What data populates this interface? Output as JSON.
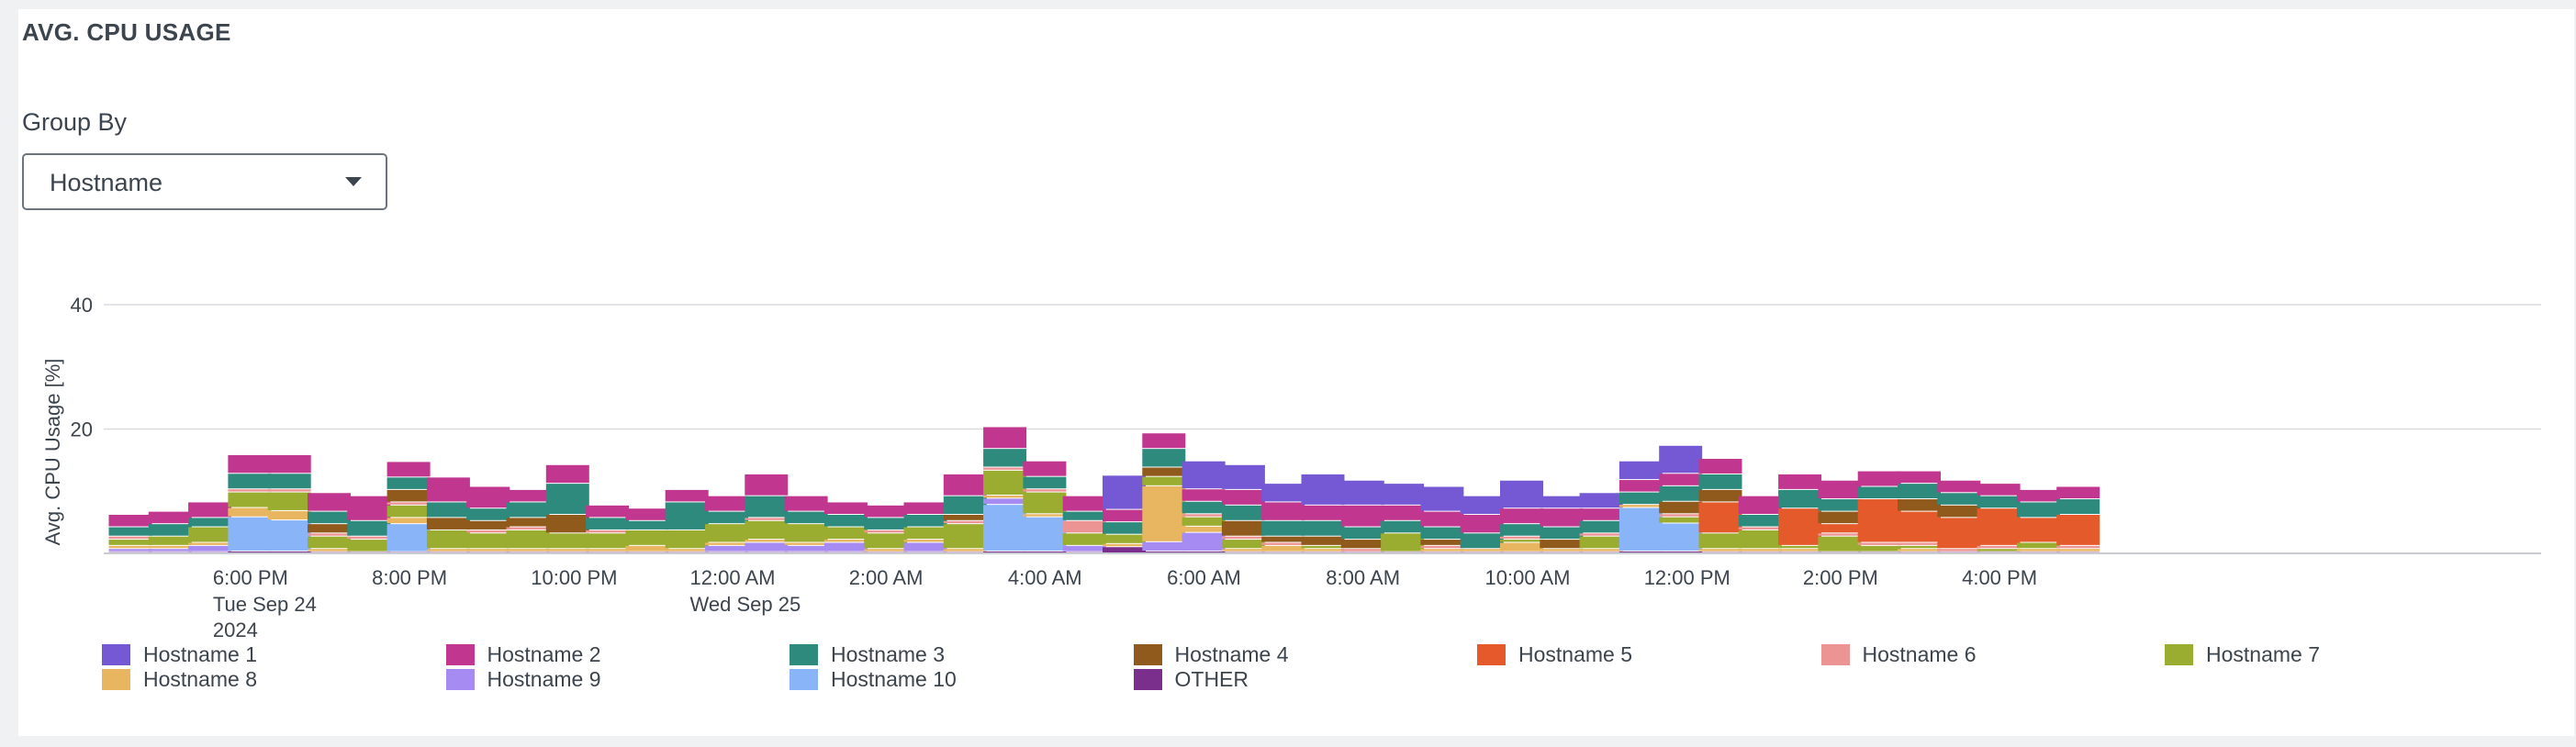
{
  "header": {
    "title": "AVG. CPU USAGE"
  },
  "controls": {
    "group_by_label": "Group By",
    "group_by_value": "Hostname"
  },
  "chart_data": {
    "type": "bar",
    "stacked": true,
    "title": "",
    "ylabel": "Avg. CPU Usage [%]",
    "xlabel": "",
    "ylim": [
      0,
      40
    ],
    "yticks": [
      20,
      40
    ],
    "grid": true,
    "legend_position": "bottom",
    "x_tick_labels": [
      {
        "label": "6:00 PM",
        "sub": [
          "Tue Sep 24",
          "2024"
        ],
        "index": 3
      },
      {
        "label": "8:00 PM",
        "sub": [],
        "index": 7
      },
      {
        "label": "10:00 PM",
        "sub": [],
        "index": 11
      },
      {
        "label": "12:00 AM",
        "sub": [
          "Wed Sep 25"
        ],
        "index": 15
      },
      {
        "label": "2:00 AM",
        "sub": [],
        "index": 19
      },
      {
        "label": "4:00 AM",
        "sub": [],
        "index": 23
      },
      {
        "label": "6:00 AM",
        "sub": [],
        "index": 27
      },
      {
        "label": "8:00 AM",
        "sub": [],
        "index": 31
      },
      {
        "label": "10:00 AM",
        "sub": [],
        "index": 35
      },
      {
        "label": "12:00 PM",
        "sub": [],
        "index": 39
      },
      {
        "label": "2:00 PM",
        "sub": [],
        "index": 43
      },
      {
        "label": "4:00 PM",
        "sub": [],
        "index": 47
      }
    ],
    "series": [
      {
        "name": "Hostname 1",
        "color": "#7559d4",
        "values": [
          0,
          0,
          0,
          0,
          0,
          0,
          0,
          0,
          0,
          0,
          0,
          0,
          0,
          0,
          0,
          0,
          0,
          0,
          0,
          0,
          0,
          0,
          0,
          0,
          0,
          5.5,
          0,
          4.5,
          4,
          3,
          5,
          4,
          3.5,
          4,
          3,
          4.5,
          2,
          2.5,
          3,
          4.5,
          0,
          0,
          0,
          0,
          0,
          0,
          0,
          0,
          0,
          0
        ]
      },
      {
        "name": "Hostname 2",
        "color": "#c1368e",
        "values": [
          2,
          2,
          2.5,
          3,
          3,
          3,
          4,
          2.5,
          4,
          3.5,
          2,
          3,
          2,
          2,
          2,
          2.5,
          3.5,
          2.5,
          2,
          2,
          2,
          3.5,
          3.5,
          2.5,
          2.5,
          2,
          2.5,
          2,
          2.5,
          3,
          2.5,
          3.5,
          2.5,
          2.5,
          3,
          2.5,
          3,
          2,
          2,
          2,
          2.5,
          3,
          2.5,
          3,
          2.5,
          2,
          2,
          2,
          2,
          2
        ]
      },
      {
        "name": "Hostname 3",
        "color": "#2f8a7e",
        "values": [
          1.5,
          2,
          1.5,
          2.5,
          2.5,
          2,
          2.5,
          2,
          2.5,
          2,
          2.5,
          5,
          2,
          1.5,
          4.5,
          2,
          3.5,
          2,
          2,
          2,
          2,
          3,
          3,
          2,
          1.5,
          2,
          3,
          2,
          2.5,
          2.5,
          2.5,
          2,
          2,
          2,
          2.5,
          2,
          2,
          2,
          2,
          2.5,
          2.5,
          2,
          3,
          2,
          2,
          2.5,
          2,
          2,
          2.5,
          2.5
        ]
      },
      {
        "name": "Hostname 4",
        "color": "#8f5a1c",
        "values": [
          0,
          0,
          0,
          0,
          0,
          1.5,
          0,
          2,
          2,
          1.5,
          1.5,
          3,
          0,
          0,
          0,
          0,
          0,
          0,
          0,
          0,
          0,
          1,
          0,
          0,
          0,
          0,
          1.5,
          0,
          2.5,
          1,
          1.5,
          1.5,
          0,
          1,
          0,
          0,
          1.5,
          0,
          0,
          2,
          2,
          0,
          0,
          2,
          0,
          2,
          2,
          0,
          0,
          0
        ]
      },
      {
        "name": "Hostname 5",
        "color": "#e45a2a",
        "values": [
          0,
          0,
          0,
          0,
          0,
          0,
          0,
          0,
          0,
          0,
          0,
          0,
          0,
          0,
          0,
          0,
          0,
          0,
          0,
          0,
          0,
          0,
          0,
          0,
          0,
          0,
          0,
          0,
          0,
          0,
          0,
          0,
          0,
          0,
          0,
          0,
          0,
          0,
          0,
          0,
          5,
          0,
          6,
          1.5,
          7,
          5,
          5,
          6,
          4,
          5
        ]
      },
      {
        "name": "Hostname 6",
        "color": "#ec9494",
        "values": [
          0.5,
          0,
          0,
          0.5,
          0.5,
          0.5,
          0.5,
          0.5,
          0,
          0.5,
          0.5,
          0,
          0.5,
          0,
          0,
          0,
          0.5,
          0,
          0,
          0.5,
          0,
          0.5,
          0.5,
          0.5,
          2,
          0,
          0,
          0.5,
          0.5,
          0.5,
          0,
          0.5,
          0,
          0.5,
          0,
          0.5,
          0,
          0.5,
          0,
          0.5,
          0,
          0.5,
          0,
          0.5,
          0.5,
          0.5,
          0.5,
          0.5,
          0,
          0.5
        ]
      },
      {
        "name": "Hostname 7",
        "color": "#9bad30",
        "values": [
          1,
          1.5,
          2.5,
          2.5,
          3,
          2,
          2,
          2,
          3,
          2.5,
          3,
          2.5,
          2.5,
          2.5,
          3,
          3,
          3,
          3,
          2,
          2.5,
          2,
          4,
          4,
          3.5,
          2,
          1.5,
          1.5,
          1.5,
          1.5,
          0,
          0.5,
          0,
          3,
          0,
          0,
          0.5,
          0,
          2,
          0,
          1,
          2.5,
          3,
          0.5,
          2.5,
          1,
          0.5,
          0,
          0.5,
          1,
          0
        ]
      },
      {
        "name": "Hostname 8",
        "color": "#e8b560",
        "values": [
          0.5,
          0.5,
          0.5,
          1.5,
          1.5,
          0.5,
          0,
          1,
          0.5,
          0.5,
          0.5,
          0.5,
          0.5,
          1,
          0.5,
          0.5,
          0.5,
          0.5,
          0.5,
          0.5,
          0.5,
          0.5,
          0.5,
          0.5,
          0,
          0.5,
          9,
          1,
          0.5,
          1,
          0.5,
          0,
          0,
          0.5,
          0.5,
          1.5,
          0.5,
          0.5,
          0.5,
          0,
          0.5,
          0.5,
          0.5,
          0,
          0,
          0.5,
          0,
          0,
          0.5,
          0.5
        ]
      },
      {
        "name": "Hostname 9",
        "color": "#a68cf2",
        "values": [
          0.5,
          0.5,
          1,
          0,
          0,
          0,
          0,
          0,
          0,
          0,
          0,
          0,
          0,
          0,
          0,
          1,
          1.5,
          1,
          1.5,
          0,
          1.5,
          0,
          1,
          0,
          1,
          0,
          1.5,
          3,
          0,
          0,
          0,
          0,
          0,
          0,
          0,
          0,
          0,
          0,
          0,
          0,
          0,
          0,
          0,
          0,
          0,
          0,
          0,
          0,
          0,
          0
        ]
      },
      {
        "name": "Hostname 10",
        "color": "#8ab4f8",
        "values": [
          0,
          0,
          0,
          5.5,
          5,
          0,
          0,
          4.5,
          0,
          0,
          0,
          0,
          0,
          0,
          0,
          0,
          0,
          0,
          0,
          0,
          0,
          0,
          7.5,
          5.5,
          0,
          0,
          0,
          0,
          0,
          0,
          0,
          0,
          0,
          0,
          0,
          0,
          0,
          0,
          7,
          4.5,
          0,
          0,
          0,
          0,
          0,
          0,
          0,
          0,
          0,
          0
        ]
      },
      {
        "name": "OTHER",
        "color": "#7a2f8c",
        "values": [
          0.2,
          0.2,
          0.2,
          0.3,
          0.3,
          0.2,
          0.2,
          0.2,
          0.2,
          0.2,
          0.2,
          0.2,
          0.2,
          0.2,
          0.2,
          0.2,
          0.2,
          0.2,
          0.2,
          0.2,
          0.2,
          0.2,
          0.3,
          0.3,
          0.2,
          1,
          0.3,
          0.3,
          0.2,
          0.2,
          0.2,
          0.2,
          0.2,
          0.2,
          0.2,
          0.2,
          0.2,
          0.2,
          0.3,
          0.3,
          0.2,
          0.2,
          0.2,
          0.2,
          0.2,
          0.2,
          0.2,
          0.2,
          0.2,
          0.2
        ]
      }
    ]
  }
}
